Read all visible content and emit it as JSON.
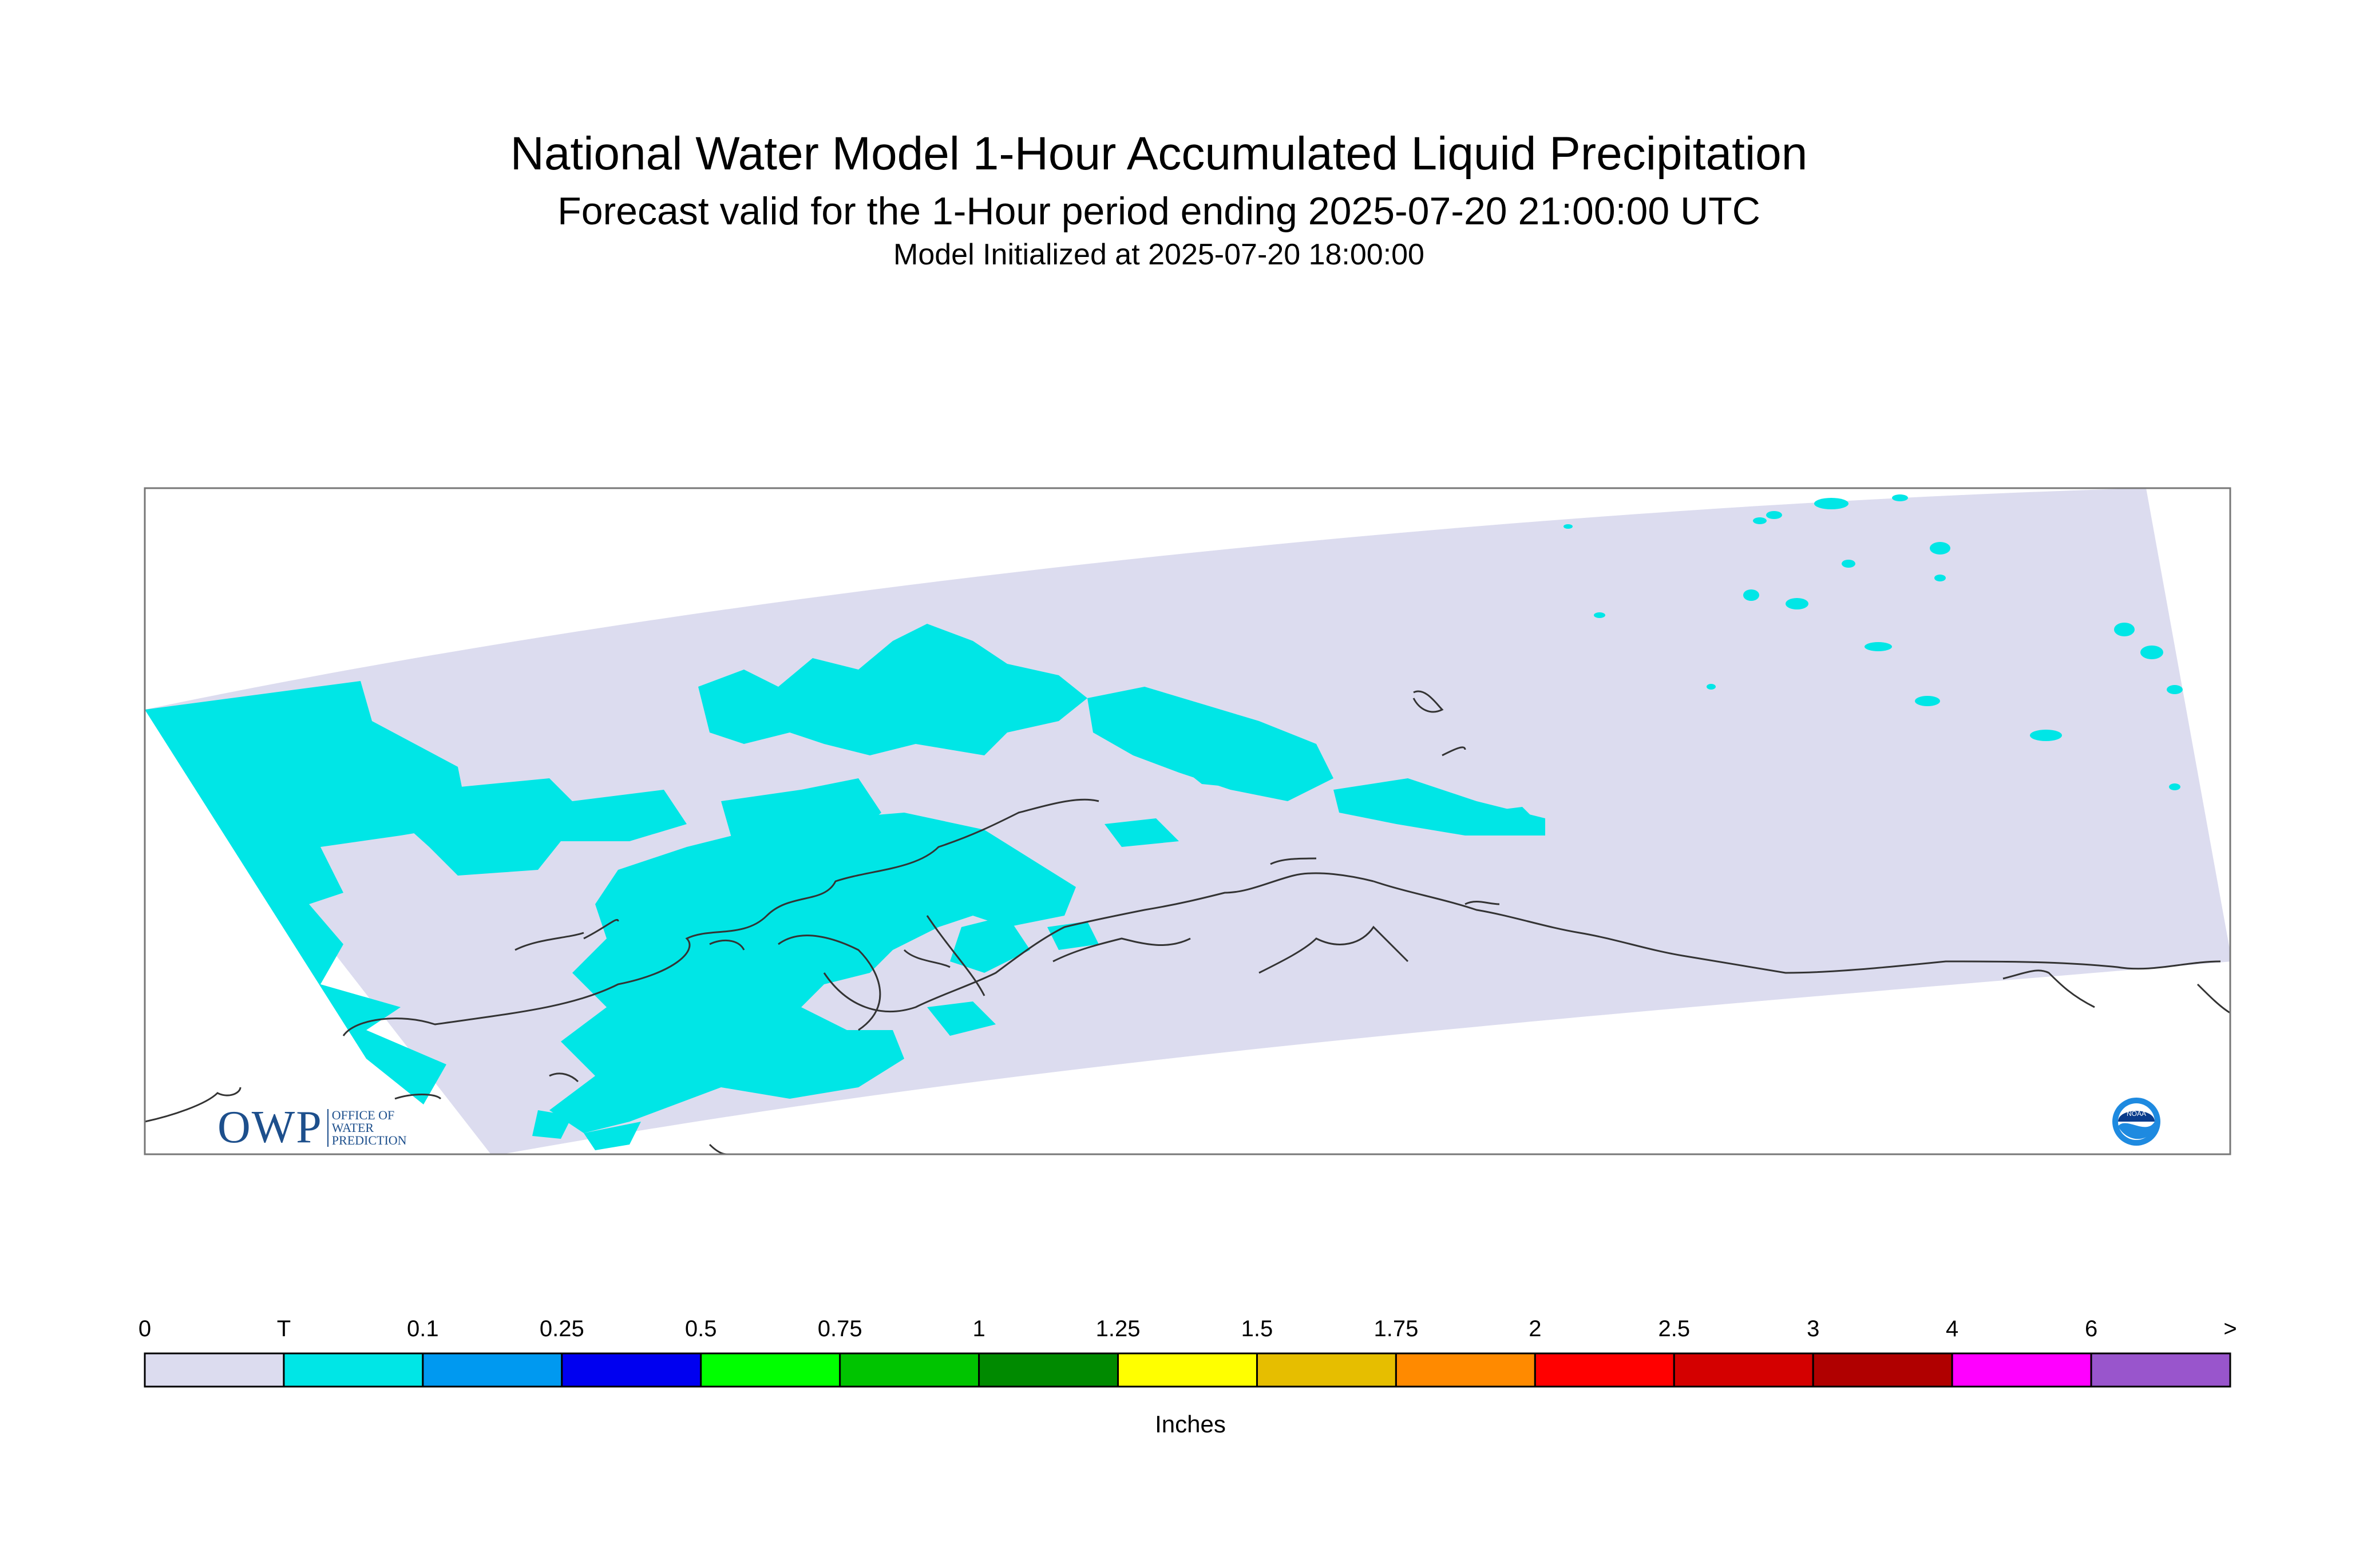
{
  "header": {
    "title": "National Water Model 1-Hour Accumulated Liquid Precipitation",
    "subtitle": "Forecast valid for the 1-Hour period ending 2025-07-20 21:00:00 UTC",
    "init": "Model Initialized at 2025-07-20 18:00:00"
  },
  "logos": {
    "owp_big": "OWP",
    "owp_small_1": "OFFICE OF",
    "owp_small_2": "WATER",
    "owp_small_3": "PREDICTION",
    "noaa": "NOAA"
  },
  "legend": {
    "units": "Inches",
    "labels": [
      "0",
      "T",
      "0.1",
      "0.25",
      "0.5",
      "0.75",
      "1",
      "1.25",
      "1.5",
      "1.75",
      "2",
      "2.5",
      "3",
      "4",
      "6",
      ">"
    ],
    "colors": [
      "#dcdcef",
      "#00e6e6",
      "#0099f0",
      "#0000f0",
      "#00ff00",
      "#00c400",
      "#008a00",
      "#ffff00",
      "#e6be00",
      "#ff8a00",
      "#ff0000",
      "#d40000",
      "#b00000",
      "#ff00ff",
      "#9955cc"
    ]
  },
  "map": {
    "domain_fill": "#dcdcef",
    "precip_fill": "#00e6e6",
    "coast_color": "#333333"
  }
}
